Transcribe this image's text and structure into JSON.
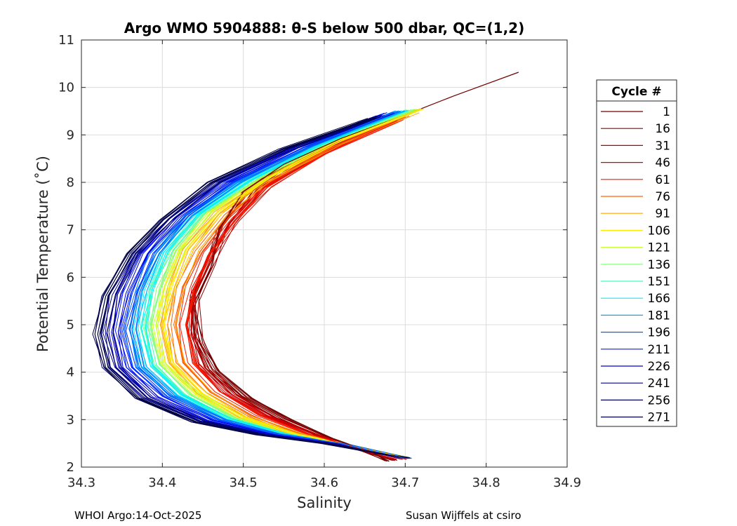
{
  "chart_data": {
    "type": "line",
    "title": "Argo WMO 5904888: θ-S below 500 dbar,  QC=(1,2)",
    "xlabel": "Salinity",
    "ylabel": "Potential Temperature (˚C)",
    "xlim": [
      34.3,
      34.9
    ],
    "ylim": [
      2,
      11
    ],
    "xticks": [
      34.3,
      34.4,
      34.5,
      34.6,
      34.7,
      34.8,
      34.9
    ],
    "xtick_labels": [
      "34.3",
      "34.4",
      "34.5",
      "34.6",
      "34.7",
      "34.8",
      "34.9"
    ],
    "yticks": [
      2,
      3,
      4,
      5,
      6,
      7,
      8,
      9,
      10,
      11
    ],
    "ytick_labels": [
      "2",
      "3",
      "4",
      "5",
      "6",
      "7",
      "8",
      "9",
      "10",
      "11"
    ],
    "grid": true,
    "legend": {
      "title": "Cycle #",
      "placement": "right-outside",
      "entries": [
        {
          "label": "1",
          "color": "#6e0000"
        },
        {
          "label": "16",
          "color": "#8f0000"
        },
        {
          "label": "31",
          "color": "#b30000"
        },
        {
          "label": "46",
          "color": "#d40000"
        },
        {
          "label": "61",
          "color": "#f51a00"
        },
        {
          "label": "76",
          "color": "#ff6000"
        },
        {
          "label": "91",
          "color": "#ffa500"
        },
        {
          "label": "106",
          "color": "#ffea00"
        },
        {
          "label": "121",
          "color": "#c8ff36"
        },
        {
          "label": "136",
          "color": "#83ff7b"
        },
        {
          "label": "151",
          "color": "#3effc0"
        },
        {
          "label": "166",
          "color": "#00f0ff"
        },
        {
          "label": "181",
          "color": "#00aaff"
        },
        {
          "label": "196",
          "color": "#0064ff"
        },
        {
          "label": "211",
          "color": "#001eff"
        },
        {
          "label": "226",
          "color": "#0000d0"
        },
        {
          "label": "241",
          "color": "#00008a"
        },
        {
          "label": "256",
          "color": "#000066"
        },
        {
          "label": "271",
          "color": "#000044"
        }
      ]
    },
    "representative_profiles": [
      {
        "cycle": "1",
        "points": [
          [
            34.84,
            10.32
          ],
          [
            34.76,
            9.82
          ],
          [
            34.7,
            9.42
          ],
          [
            34.62,
            8.92
          ],
          [
            34.55,
            8.38
          ],
          [
            34.5,
            7.8
          ],
          [
            34.47,
            7.0
          ],
          [
            34.46,
            6.2
          ],
          [
            34.44,
            5.4
          ],
          [
            34.45,
            4.6
          ],
          [
            34.47,
            4.0
          ],
          [
            34.51,
            3.45
          ],
          [
            34.56,
            3.0
          ],
          [
            34.61,
            2.6
          ],
          [
            34.66,
            2.3
          ],
          [
            34.68,
            2.12
          ]
        ]
      },
      {
        "cycle": "61",
        "points": [
          [
            34.69,
            9.3
          ],
          [
            34.6,
            8.6
          ],
          [
            34.53,
            7.9
          ],
          [
            34.49,
            7.2
          ],
          [
            34.46,
            6.5
          ],
          [
            34.44,
            5.8
          ],
          [
            34.43,
            5.0
          ],
          [
            34.44,
            4.2
          ],
          [
            34.47,
            3.6
          ],
          [
            34.52,
            3.1
          ],
          [
            34.58,
            2.7
          ],
          [
            34.63,
            2.45
          ],
          [
            34.7,
            2.18
          ]
        ]
      },
      {
        "cycle": "106",
        "points": [
          [
            34.72,
            9.55
          ],
          [
            34.62,
            8.9
          ],
          [
            34.53,
            8.1
          ],
          [
            34.47,
            7.4
          ],
          [
            34.43,
            6.6
          ],
          [
            34.41,
            5.8
          ],
          [
            34.4,
            5.0
          ],
          [
            34.41,
            4.2
          ],
          [
            34.45,
            3.55
          ],
          [
            34.5,
            3.05
          ],
          [
            34.56,
            2.7
          ],
          [
            34.62,
            2.5
          ],
          [
            34.7,
            2.2
          ]
        ]
      },
      {
        "cycle": "196",
        "points": [
          [
            34.69,
            9.5
          ],
          [
            34.58,
            8.75
          ],
          [
            34.49,
            8.0
          ],
          [
            34.43,
            7.3
          ],
          [
            34.39,
            6.5
          ],
          [
            34.37,
            5.7
          ],
          [
            34.36,
            4.9
          ],
          [
            34.37,
            4.1
          ],
          [
            34.41,
            3.5
          ],
          [
            34.47,
            3.0
          ],
          [
            34.54,
            2.7
          ],
          [
            34.62,
            2.5
          ],
          [
            34.7,
            2.18
          ]
        ]
      },
      {
        "cycle": "271",
        "points": [
          [
            34.66,
            9.35
          ],
          [
            34.55,
            8.7
          ],
          [
            34.46,
            8.0
          ],
          [
            34.4,
            7.2
          ],
          [
            34.36,
            6.5
          ],
          [
            34.33,
            5.6
          ],
          [
            34.32,
            4.8
          ],
          [
            34.33,
            4.1
          ],
          [
            34.37,
            3.45
          ],
          [
            34.44,
            2.95
          ],
          [
            34.52,
            2.68
          ],
          [
            34.6,
            2.5
          ],
          [
            34.7,
            2.2
          ]
        ]
      }
    ]
  },
  "footer": {
    "left": "WHOI Argo:14-Oct-2025",
    "right": "Susan Wijffels at csiro"
  }
}
